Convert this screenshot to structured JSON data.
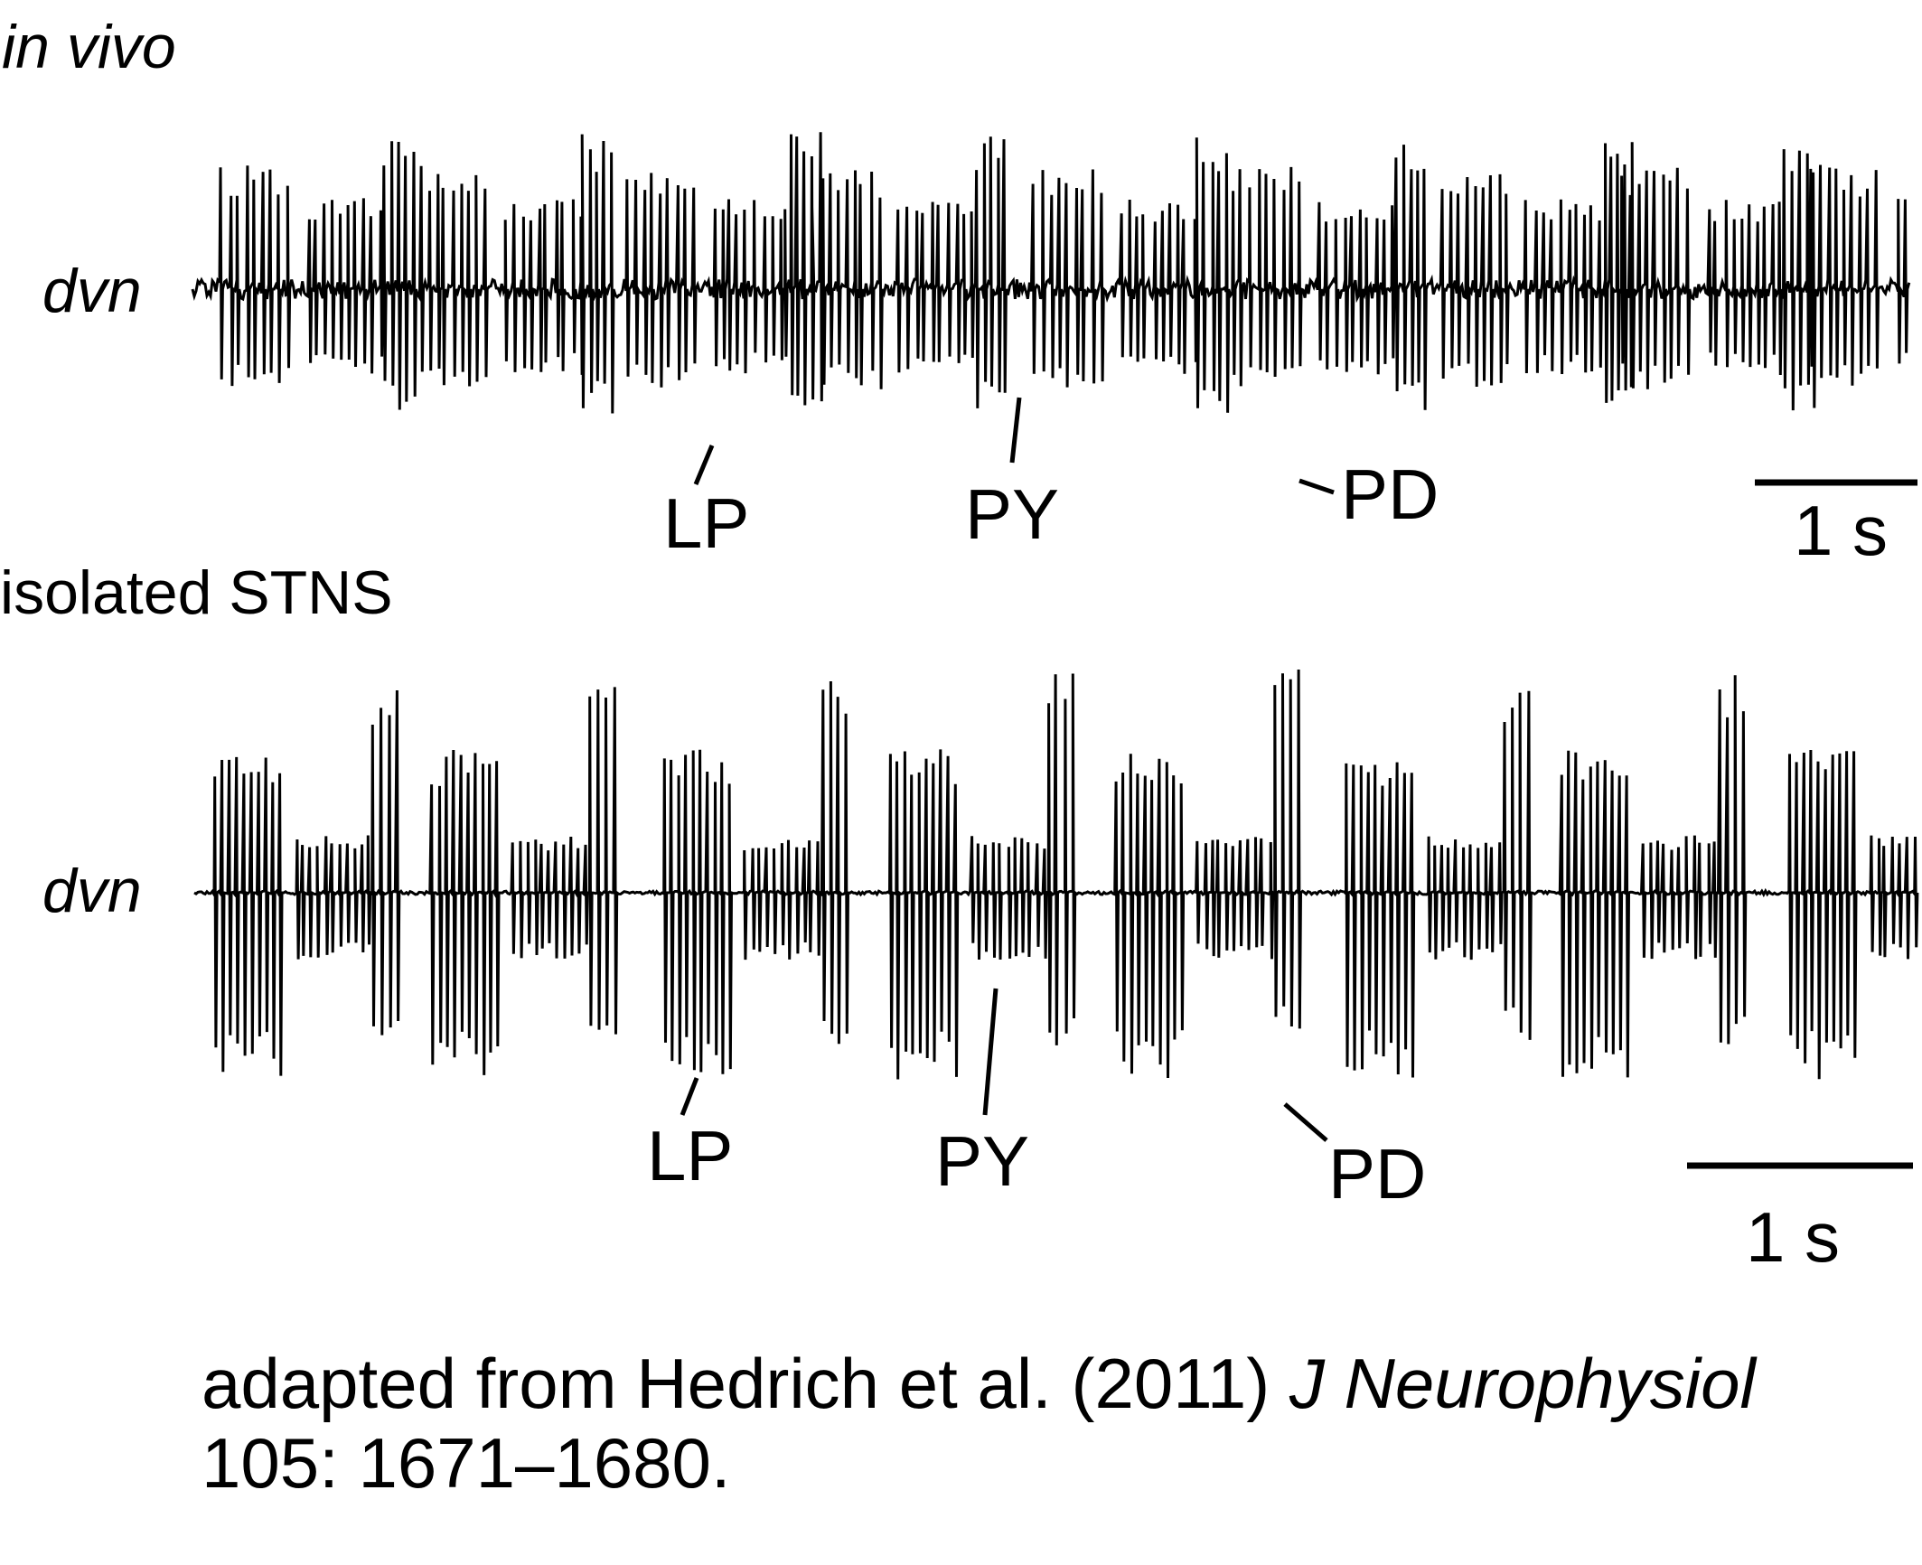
{
  "panels": [
    {
      "title": "in vivo",
      "title_italic": true,
      "channel": "dvn",
      "labels": {
        "lp": "LP",
        "py": "PY",
        "pd": "PD"
      },
      "scale_label": "1 s",
      "recording": "in-vivo"
    },
    {
      "title": "isolated STNS",
      "title_italic": false,
      "channel": "dvn",
      "labels": {
        "lp": "LP",
        "py": "PY",
        "pd": "PD"
      },
      "scale_label": "1 s",
      "recording": "isolated"
    }
  ],
  "citation": {
    "prefix": "adapted from Hedrich et al. (2011) ",
    "journal": "J Neurophysiol",
    "pages": "105: 1671–1680."
  },
  "colors": {
    "trace": "#000000",
    "background": "#ffffff"
  }
}
